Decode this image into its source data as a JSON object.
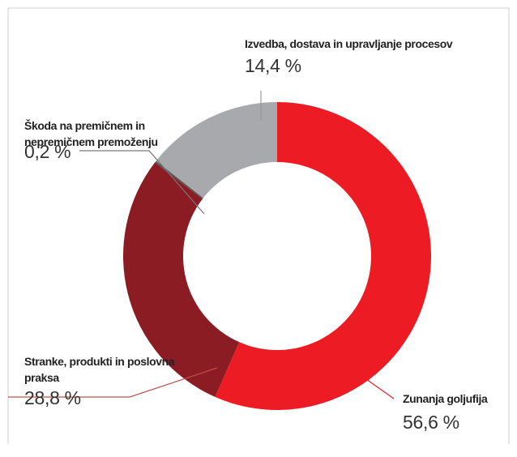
{
  "chart_data": {
    "type": "donut",
    "categories": [
      "Zunanja goljufija",
      "Stranke, produkti in poslovna praksa",
      "Škoda na premičnem in nepremičnem premoženju",
      "Izvedba, dostava in upravljanje procesov"
    ],
    "values": [
      56.6,
      28.8,
      0.2,
      14.4
    ],
    "value_labels": [
      "56,6 %",
      "28,8 %",
      "0,2 %",
      "14,4 %"
    ],
    "colors": [
      "#ed1c24",
      "#8b1c24",
      "#555555",
      "#a7a9ac"
    ]
  }
}
